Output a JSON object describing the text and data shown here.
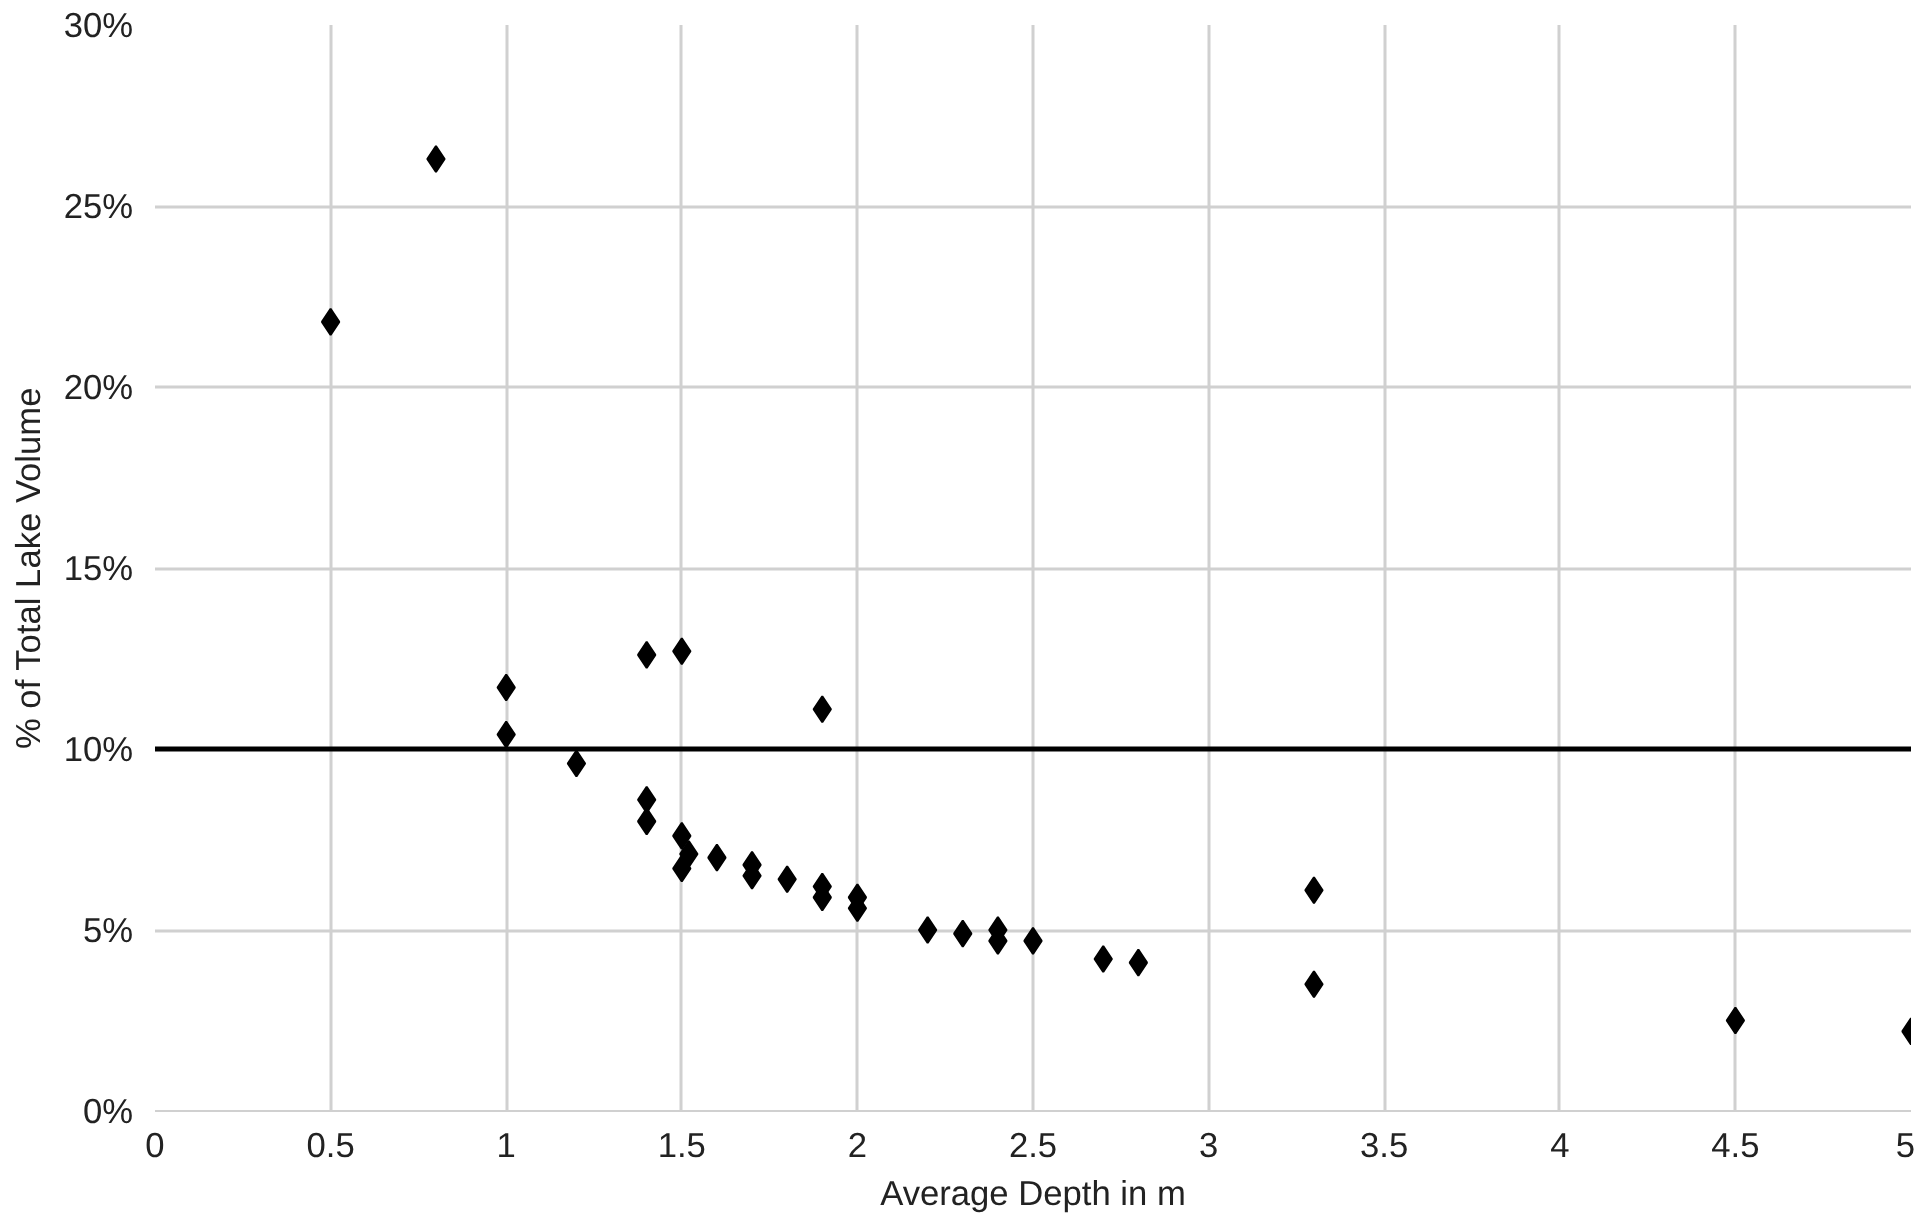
{
  "chart_data": {
    "type": "scatter",
    "xlabel": "Average Depth in m",
    "ylabel": "% of Total Lake Volume",
    "x": [
      0.5,
      0.8,
      1,
      1,
      1.2,
      1.4,
      1.5,
      1.9,
      1.4,
      1.4,
      1.5,
      1.52,
      1.5,
      1.6,
      1.7,
      1.7,
      1.8,
      1.9,
      1.9,
      2,
      2,
      2.2,
      2.3,
      2.4,
      2.4,
      2.5,
      2.7,
      2.8,
      3.3,
      3.3,
      4.5,
      5
    ],
    "series": [
      {
        "color": "#000000",
        "values": [
          21.8,
          26.3,
          11.7,
          10.4,
          9.6,
          12.6,
          12.7,
          11.1,
          8.6,
          8.0,
          7.6,
          7.1,
          6.7,
          7.0,
          6.8,
          6.5,
          6.4,
          6.2,
          5.9,
          5.9,
          5.6,
          5.0,
          4.9,
          5.0,
          4.7,
          4.7,
          4.2,
          4.1,
          6.1,
          3.5,
          2.5,
          2.2
        ]
      }
    ],
    "xlim": [
      0,
      5
    ],
    "xticks": [
      0,
      0.5,
      1,
      1.5,
      2,
      2.5,
      3,
      3.5,
      4,
      4.5,
      5
    ],
    "ylim": [
      0,
      30
    ],
    "yticks": [
      {
        "value": 0,
        "label": "0%"
      },
      {
        "value": 5,
        "label": "5%"
      },
      {
        "value": 10,
        "label": "10%"
      },
      {
        "value": 15,
        "label": "15%"
      },
      {
        "value": 20,
        "label": "20%"
      },
      {
        "value": 25,
        "label": "25%"
      },
      {
        "value": 30,
        "label": "30%"
      }
    ],
    "ref_lines": [
      {
        "axis": "y",
        "value": 10,
        "color": "#000000"
      }
    ],
    "grid": true,
    "marker": "diamond"
  }
}
